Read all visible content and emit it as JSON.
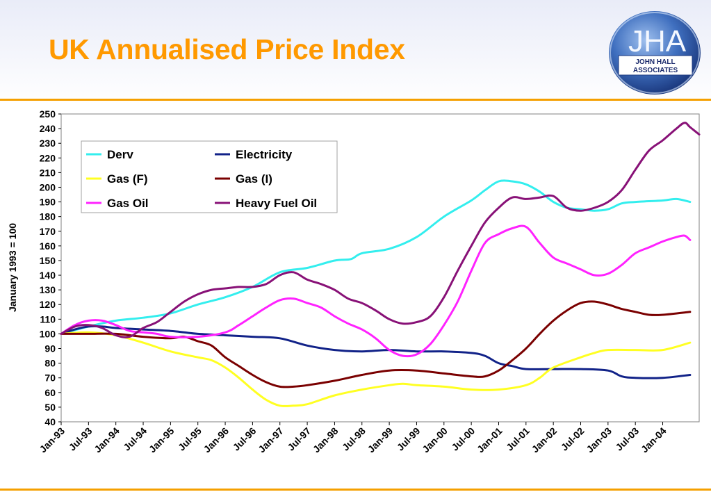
{
  "slide": {
    "title": "UK Annualised Price Index"
  },
  "logo": {
    "brand": "JHA",
    "name_line1": "JOHN HALL",
    "name_line2": "ASSOCIATES"
  },
  "colors": {
    "title": "#ff9900",
    "rule": "#f5a000"
  },
  "chart_data": {
    "type": "line",
    "title": "",
    "xlabel": "",
    "ylabel": "January 1993 = 100",
    "ylim": [
      40,
      250
    ],
    "ytick_step": 10,
    "grid": false,
    "legend_position": "top-left",
    "x_range": [
      1993.0,
      2004.667
    ],
    "x_tick_labels": [
      "Jan-93",
      "Jul-93",
      "Jan-94",
      "Jul-94",
      "Jan-95",
      "Jul-95",
      "Jan-96",
      "Jul-96",
      "Jan-97",
      "Jul-97",
      "Jan-98",
      "Jul-98",
      "Jan-99",
      "Jul-99",
      "Jan-00",
      "Jul-00",
      "Jan-01",
      "Jul-01",
      "Jan-02",
      "Jul-02",
      "Jan-03",
      "Jul-03",
      "Jan-04"
    ],
    "series": [
      {
        "name": "Derv",
        "color": "#33eeee",
        "points": [
          [
            1993.0,
            100
          ],
          [
            1993.5,
            105
          ],
          [
            1994.0,
            109
          ],
          [
            1994.5,
            111
          ],
          [
            1995.0,
            114
          ],
          [
            1995.5,
            120
          ],
          [
            1996.0,
            125
          ],
          [
            1996.5,
            132
          ],
          [
            1997.0,
            142
          ],
          [
            1997.5,
            145
          ],
          [
            1998.0,
            150
          ],
          [
            1998.3,
            151
          ],
          [
            1998.5,
            155
          ],
          [
            1999.0,
            158
          ],
          [
            1999.5,
            166
          ],
          [
            2000.0,
            180
          ],
          [
            2000.5,
            191
          ],
          [
            2000.75,
            198
          ],
          [
            2001.0,
            204
          ],
          [
            2001.25,
            204
          ],
          [
            2001.5,
            202
          ],
          [
            2001.75,
            197
          ],
          [
            2002.0,
            190
          ],
          [
            2002.25,
            186
          ],
          [
            2002.5,
            185
          ],
          [
            2002.75,
            184
          ],
          [
            2003.0,
            185
          ],
          [
            2003.25,
            189
          ],
          [
            2003.5,
            190
          ],
          [
            2004.0,
            191
          ],
          [
            2004.25,
            192
          ],
          [
            2004.5,
            190
          ]
        ]
      },
      {
        "name": "Electricity",
        "color": "#112288",
        "points": [
          [
            1993.0,
            100
          ],
          [
            1993.25,
            103
          ],
          [
            1993.5,
            105
          ],
          [
            1993.75,
            105
          ],
          [
            1994.0,
            104
          ],
          [
            1994.5,
            103
          ],
          [
            1995.0,
            102
          ],
          [
            1995.25,
            101
          ],
          [
            1995.5,
            100
          ],
          [
            1996.0,
            99
          ],
          [
            1996.5,
            98
          ],
          [
            1997.0,
            97
          ],
          [
            1997.5,
            92
          ],
          [
            1998.0,
            89
          ],
          [
            1998.5,
            88
          ],
          [
            1999.0,
            89
          ],
          [
            1999.5,
            88
          ],
          [
            2000.0,
            88
          ],
          [
            2000.5,
            87
          ],
          [
            2000.75,
            85
          ],
          [
            2001.0,
            80
          ],
          [
            2001.25,
            78
          ],
          [
            2001.5,
            76
          ],
          [
            2002.0,
            76
          ],
          [
            2002.5,
            76
          ],
          [
            2003.0,
            75
          ],
          [
            2003.25,
            71
          ],
          [
            2003.5,
            70
          ],
          [
            2004.0,
            70
          ],
          [
            2004.5,
            72
          ]
        ]
      },
      {
        "name": "Gas (F)",
        "color": "#ffff22",
        "points": [
          [
            1993.0,
            100
          ],
          [
            1993.5,
            101
          ],
          [
            1994.0,
            99
          ],
          [
            1994.5,
            94
          ],
          [
            1995.0,
            88
          ],
          [
            1995.5,
            84
          ],
          [
            1995.75,
            82
          ],
          [
            1996.0,
            77
          ],
          [
            1996.25,
            70
          ],
          [
            1996.5,
            62
          ],
          [
            1996.75,
            55
          ],
          [
            1997.0,
            51
          ],
          [
            1997.25,
            51
          ],
          [
            1997.5,
            52
          ],
          [
            1998.0,
            58
          ],
          [
            1998.5,
            62
          ],
          [
            1999.0,
            65
          ],
          [
            1999.25,
            66
          ],
          [
            1999.5,
            65
          ],
          [
            2000.0,
            64
          ],
          [
            2000.5,
            62
          ],
          [
            2001.0,
            62
          ],
          [
            2001.5,
            65
          ],
          [
            2001.75,
            70
          ],
          [
            2002.0,
            77
          ],
          [
            2002.5,
            84
          ],
          [
            2002.75,
            87
          ],
          [
            2003.0,
            89
          ],
          [
            2003.5,
            89
          ],
          [
            2004.0,
            89
          ],
          [
            2004.5,
            94
          ]
        ]
      },
      {
        "name": "Gas (I)",
        "color": "#7a0000",
        "points": [
          [
            1993.0,
            100
          ],
          [
            1993.5,
            100
          ],
          [
            1994.0,
            100
          ],
          [
            1994.5,
            98
          ],
          [
            1995.0,
            97
          ],
          [
            1995.25,
            98
          ],
          [
            1995.5,
            95
          ],
          [
            1995.75,
            92
          ],
          [
            1996.0,
            84
          ],
          [
            1996.25,
            78
          ],
          [
            1996.5,
            72
          ],
          [
            1996.75,
            67
          ],
          [
            1997.0,
            64
          ],
          [
            1997.25,
            64
          ],
          [
            1997.5,
            65
          ],
          [
            1998.0,
            68
          ],
          [
            1998.5,
            72
          ],
          [
            1999.0,
            75
          ],
          [
            1999.5,
            75
          ],
          [
            2000.0,
            73
          ],
          [
            2000.5,
            71
          ],
          [
            2000.75,
            71
          ],
          [
            2001.0,
            75
          ],
          [
            2001.25,
            82
          ],
          [
            2001.5,
            90
          ],
          [
            2001.75,
            100
          ],
          [
            2002.0,
            109
          ],
          [
            2002.25,
            116
          ],
          [
            2002.5,
            121
          ],
          [
            2002.75,
            122
          ],
          [
            2003.0,
            120
          ],
          [
            2003.25,
            117
          ],
          [
            2003.5,
            115
          ],
          [
            2003.75,
            113
          ],
          [
            2004.0,
            113
          ],
          [
            2004.5,
            115
          ]
        ]
      },
      {
        "name": "Gas Oil",
        "color": "#ff22ff",
        "points": [
          [
            1993.0,
            100
          ],
          [
            1993.25,
            106
          ],
          [
            1993.5,
            109
          ],
          [
            1993.75,
            109
          ],
          [
            1994.0,
            106
          ],
          [
            1994.25,
            102
          ],
          [
            1994.5,
            101
          ],
          [
            1994.75,
            100
          ],
          [
            1995.0,
            98
          ],
          [
            1995.5,
            98
          ],
          [
            1996.0,
            101
          ],
          [
            1996.25,
            106
          ],
          [
            1996.5,
            112
          ],
          [
            1996.75,
            118
          ],
          [
            1997.0,
            123
          ],
          [
            1997.25,
            124
          ],
          [
            1997.5,
            121
          ],
          [
            1997.75,
            118
          ],
          [
            1998.0,
            112
          ],
          [
            1998.25,
            107
          ],
          [
            1998.5,
            103
          ],
          [
            1998.75,
            97
          ],
          [
            1999.0,
            89
          ],
          [
            1999.25,
            85
          ],
          [
            1999.5,
            86
          ],
          [
            1999.75,
            93
          ],
          [
            2000.0,
            106
          ],
          [
            2000.25,
            122
          ],
          [
            2000.5,
            143
          ],
          [
            2000.75,
            162
          ],
          [
            2001.0,
            168
          ],
          [
            2001.25,
            172
          ],
          [
            2001.5,
            173
          ],
          [
            2001.75,
            162
          ],
          [
            2002.0,
            152
          ],
          [
            2002.25,
            148
          ],
          [
            2002.5,
            144
          ],
          [
            2002.75,
            140
          ],
          [
            2003.0,
            141
          ],
          [
            2003.25,
            147
          ],
          [
            2003.5,
            155
          ],
          [
            2003.75,
            159
          ],
          [
            2004.0,
            163
          ],
          [
            2004.25,
            166
          ],
          [
            2004.4,
            167
          ],
          [
            2004.5,
            164
          ]
        ]
      },
      {
        "name": "Heavy Fuel Oil",
        "color": "#881177",
        "points": [
          [
            1993.0,
            100
          ],
          [
            1993.25,
            105
          ],
          [
            1993.5,
            106
          ],
          [
            1993.75,
            104
          ],
          [
            1994.0,
            99
          ],
          [
            1994.25,
            98
          ],
          [
            1994.5,
            104
          ],
          [
            1994.75,
            108
          ],
          [
            1995.0,
            115
          ],
          [
            1995.25,
            122
          ],
          [
            1995.5,
            127
          ],
          [
            1995.75,
            130
          ],
          [
            1996.0,
            131
          ],
          [
            1996.25,
            132
          ],
          [
            1996.5,
            132
          ],
          [
            1996.75,
            134
          ],
          [
            1997.0,
            140
          ],
          [
            1997.25,
            142
          ],
          [
            1997.5,
            137
          ],
          [
            1997.75,
            134
          ],
          [
            1998.0,
            130
          ],
          [
            1998.25,
            124
          ],
          [
            1998.5,
            121
          ],
          [
            1998.75,
            116
          ],
          [
            1999.0,
            110
          ],
          [
            1999.25,
            107
          ],
          [
            1999.5,
            108
          ],
          [
            1999.75,
            112
          ],
          [
            2000.0,
            125
          ],
          [
            2000.25,
            143
          ],
          [
            2000.5,
            160
          ],
          [
            2000.75,
            176
          ],
          [
            2001.0,
            186
          ],
          [
            2001.25,
            193
          ],
          [
            2001.5,
            192
          ],
          [
            2001.75,
            193
          ],
          [
            2002.0,
            194
          ],
          [
            2002.25,
            186
          ],
          [
            2002.5,
            184
          ],
          [
            2002.75,
            186
          ],
          [
            2003.0,
            190
          ],
          [
            2003.25,
            198
          ],
          [
            2003.5,
            212
          ],
          [
            2003.75,
            225
          ],
          [
            2004.0,
            232
          ],
          [
            2004.25,
            240
          ],
          [
            2004.4,
            244
          ],
          [
            2004.5,
            241
          ],
          [
            2004.667,
            236
          ]
        ]
      }
    ]
  }
}
